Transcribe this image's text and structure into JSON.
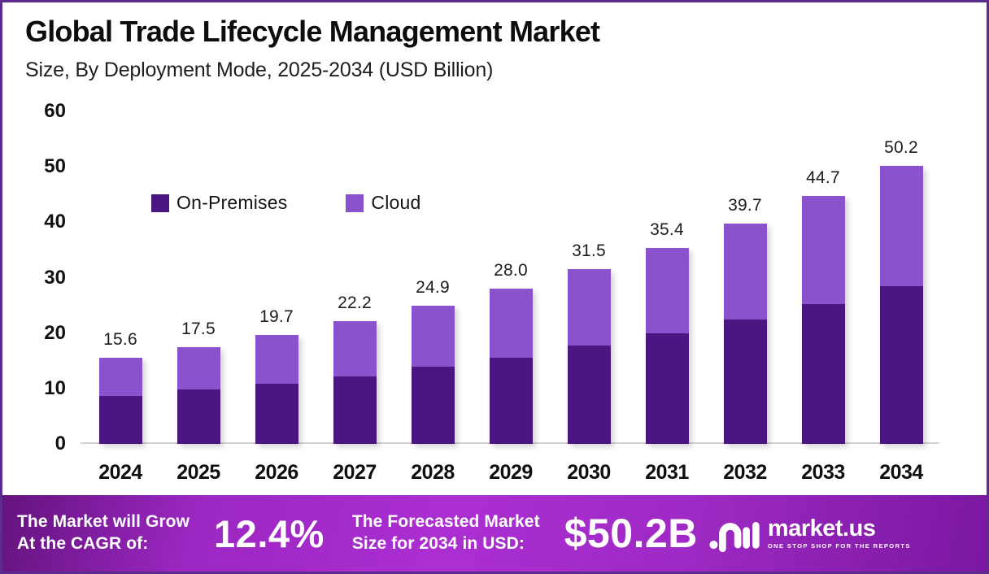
{
  "header": {
    "title": "Global Trade Lifecycle Management Market",
    "subtitle": "Size, By Deployment Mode, 2025-2034 (USD Billion)"
  },
  "chart_data": {
    "type": "bar",
    "stacked": true,
    "title": "Global Trade Lifecycle Management Market Size, By Deployment Mode, 2025-2034 (USD Billion)",
    "categories": [
      "2024",
      "2025",
      "2026",
      "2027",
      "2028",
      "2029",
      "2030",
      "2031",
      "2032",
      "2033",
      "2034"
    ],
    "series": [
      {
        "name": "On-Premises",
        "color": "#4A1782",
        "values": [
          8.6,
          9.8,
          10.9,
          12.2,
          13.9,
          15.6,
          17.7,
          19.9,
          22.4,
          25.3,
          28.5
        ]
      },
      {
        "name": "Cloud",
        "color": "#8C52CE",
        "values": [
          7.0,
          7.7,
          8.8,
          10.0,
          11.0,
          12.4,
          13.8,
          15.5,
          17.3,
          19.4,
          21.7
        ]
      }
    ],
    "totals": [
      15.6,
      17.5,
      19.7,
      22.2,
      24.9,
      28.0,
      31.5,
      35.4,
      39.7,
      44.7,
      50.2
    ],
    "total_labels": [
      "15.6",
      "17.5",
      "19.7",
      "22.2",
      "24.9",
      "28.0",
      "31.5",
      "35.4",
      "39.7",
      "44.7",
      "50.2"
    ],
    "ylim": [
      0,
      60
    ],
    "yticks": [
      0,
      10,
      20,
      30,
      40,
      50,
      60
    ],
    "grid": false,
    "legend_position": "inside-top-left",
    "unit": "USD Billion"
  },
  "footer": {
    "cagr_line1": "The Market will Grow",
    "cagr_line2": "At the CAGR of:",
    "cagr_value": "12.4%",
    "forecast_line1": "The Forecasted Market",
    "forecast_line2": "Size for 2034 in USD:",
    "forecast_value": "$50.2B",
    "brand_name": "market.us",
    "brand_tagline": "ONE STOP SHOP FOR THE REPORTS"
  },
  "colors": {
    "border": "#5B2B8D",
    "on_premises": "#4A1782",
    "cloud": "#8C52CE",
    "axis_line": "#D2D2D2",
    "footer_gradient_mid": "#AB2ED1"
  }
}
